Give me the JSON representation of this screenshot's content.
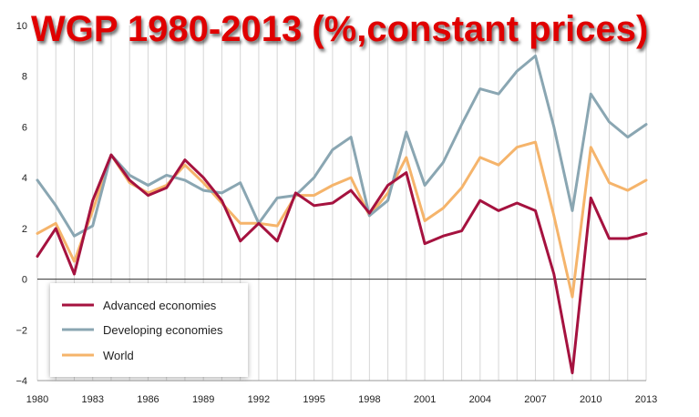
{
  "chart_data": {
    "type": "line",
    "title": "WGP 1980-2013 (%,constant prices)",
    "x": [
      1980,
      1981,
      1982,
      1983,
      1984,
      1985,
      1986,
      1987,
      1988,
      1989,
      1990,
      1991,
      1992,
      1993,
      1994,
      1995,
      1996,
      1997,
      1998,
      1999,
      2000,
      2001,
      2002,
      2003,
      2004,
      2005,
      2006,
      2007,
      2008,
      2009,
      2010,
      2011,
      2012,
      2013
    ],
    "x_tick_labels": [
      "1980",
      "1983",
      "1986",
      "1989",
      "1992",
      "1995",
      "1998",
      "2001",
      "2004",
      "2007",
      "2010",
      "2013"
    ],
    "y_tick_labels": [
      "10",
      "8",
      "6",
      "4",
      "2",
      "0",
      "−2",
      "−4"
    ],
    "xlim": [
      1980,
      2013
    ],
    "ylim": [
      -4,
      10
    ],
    "grid": "vertical",
    "legend_position": "bottom-left",
    "series": [
      {
        "name": "Advanced economies",
        "color": "#a5123f",
        "values": [
          0.9,
          2.0,
          0.2,
          3.1,
          4.9,
          3.9,
          3.3,
          3.6,
          4.7,
          4.0,
          3.1,
          1.5,
          2.2,
          1.5,
          3.4,
          2.9,
          3.0,
          3.5,
          2.6,
          3.7,
          4.2,
          1.4,
          1.7,
          1.9,
          3.1,
          2.7,
          3.0,
          2.7,
          0.2,
          -3.7,
          3.2,
          1.6,
          1.6,
          1.8
        ]
      },
      {
        "name": "Developing economies",
        "color": "#8aa6b2",
        "values": [
          3.9,
          2.9,
          1.7,
          2.1,
          4.9,
          4.1,
          3.7,
          4.1,
          3.9,
          3.5,
          3.4,
          3.8,
          2.2,
          3.2,
          3.3,
          4.0,
          5.1,
          5.6,
          2.5,
          3.1,
          5.8,
          3.7,
          4.6,
          6.1,
          7.5,
          7.3,
          8.2,
          8.8,
          6.0,
          2.7,
          7.3,
          6.2,
          5.6,
          6.1
        ]
      },
      {
        "name": "World",
        "color": "#f5b46b",
        "values": [
          1.8,
          2.2,
          0.7,
          2.7,
          4.9,
          3.8,
          3.4,
          3.7,
          4.5,
          3.8,
          3.0,
          2.2,
          2.2,
          2.1,
          3.3,
          3.3,
          3.7,
          4.0,
          2.5,
          3.4,
          4.8,
          2.3,
          2.8,
          3.6,
          4.8,
          4.5,
          5.2,
          5.4,
          2.5,
          -0.7,
          5.2,
          3.8,
          3.5,
          3.9
        ]
      }
    ]
  }
}
